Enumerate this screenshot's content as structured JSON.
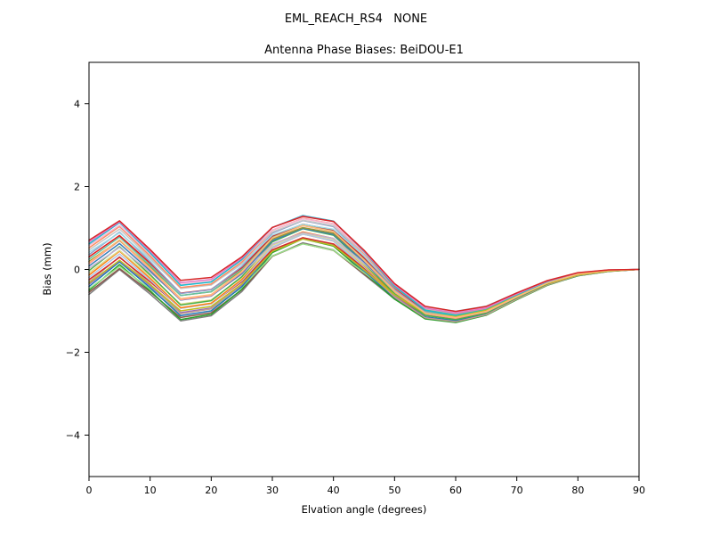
{
  "chart_data": {
    "type": "line",
    "suptitle": "EML_REACH_RS4   NONE",
    "title": "Antenna Phase Biases: BeiDOU-E1",
    "xlabel": "Elvation angle (degrees)",
    "ylabel": "Bias (mm)",
    "xlim": [
      0,
      90
    ],
    "ylim": [
      -5,
      5
    ],
    "xticks": [
      0,
      10,
      20,
      30,
      40,
      50,
      60,
      70,
      80,
      90
    ],
    "yticks": [
      -4,
      -2,
      0,
      2,
      4
    ],
    "grid": false,
    "legend": "none",
    "x": [
      0,
      5,
      10,
      15,
      20,
      25,
      30,
      35,
      40,
      45,
      50,
      55,
      60,
      65,
      70,
      75,
      80,
      85,
      90
    ],
    "base": [
      0.0,
      0.55,
      -0.1,
      -0.8,
      -0.7,
      -0.15,
      0.65,
      0.95,
      0.8,
      0.15,
      -0.55,
      -1.05,
      -1.15,
      -1.0,
      -0.65,
      -0.33,
      -0.12,
      -0.03,
      0.0
    ],
    "envelope": [
      0.55,
      0.5,
      0.45,
      0.4,
      0.38,
      0.35,
      0.3,
      0.28,
      0.3,
      0.25,
      0.15,
      0.1,
      0.08,
      0.06,
      0.05,
      0.04,
      0.03,
      0.015,
      0.0
    ],
    "series": [
      {
        "color": "#7f7f7f",
        "offset": -1.1,
        "scale": 1.0
      },
      {
        "color": "#8c564b",
        "offset": -1.0,
        "scale": 0.95
      },
      {
        "color": "#2ca02c",
        "offset": -0.92,
        "scale": 1.05
      },
      {
        "color": "#98df8a",
        "offset": -0.85,
        "scale": 0.9
      },
      {
        "color": "#1f77b4",
        "offset": -0.75,
        "scale": 1.02
      },
      {
        "color": "#9467bd",
        "offset": -0.65,
        "scale": 0.98
      },
      {
        "color": "#c49c94",
        "offset": -0.55,
        "scale": 1.06
      },
      {
        "color": "#d62728",
        "offset": -0.45,
        "scale": 0.94
      },
      {
        "color": "#aec7e8",
        "offset": -0.35,
        "scale": 1.0
      },
      {
        "color": "#ff7f0e",
        "offset": -0.25,
        "scale": 1.03
      },
      {
        "color": "#dbdb8d",
        "offset": -0.15,
        "scale": 0.97
      },
      {
        "color": "#4daf4a",
        "offset": -0.05,
        "scale": 1.05
      },
      {
        "color": "#c5b0d5",
        "offset": 0.05,
        "scale": 0.92
      },
      {
        "color": "#377eb8",
        "offset": 0.15,
        "scale": 1.0
      },
      {
        "color": "#ff9896",
        "offset": 0.25,
        "scale": 1.04
      },
      {
        "color": "#999933",
        "offset": 0.35,
        "scale": 0.96
      },
      {
        "color": "#66c2a5",
        "offset": 0.45,
        "scale": 1.01
      },
      {
        "color": "#e41a1c",
        "offset": 0.55,
        "scale": 0.99
      },
      {
        "color": "#8da0cb",
        "offset": 0.65,
        "scale": 1.05
      },
      {
        "color": "#9edae5",
        "offset": 0.75,
        "scale": 0.93
      },
      {
        "color": "#c7c7c7",
        "offset": 0.85,
        "scale": 1.0
      },
      {
        "color": "#fc8d62",
        "offset": 0.95,
        "scale": 1.02
      },
      {
        "color": "#f7b6d2",
        "offset": 1.05,
        "scale": 0.98
      },
      {
        "color": "#17becf",
        "offset": 1.12,
        "scale": 1.04
      },
      {
        "color": "#bcbd22",
        "offset": -0.6,
        "scale": 0.95
      },
      {
        "color": "#e377c2",
        "offset": 1.2,
        "scale": 1.0
      },
      {
        "color": "#ffbb78",
        "offset": 0.3,
        "scale": 1.03
      },
      {
        "color": "#d62728",
        "offset": 1.28,
        "scale": 0.97
      }
    ],
    "colors": {
      "axis": "#000000",
      "background": "#ffffff"
    }
  }
}
